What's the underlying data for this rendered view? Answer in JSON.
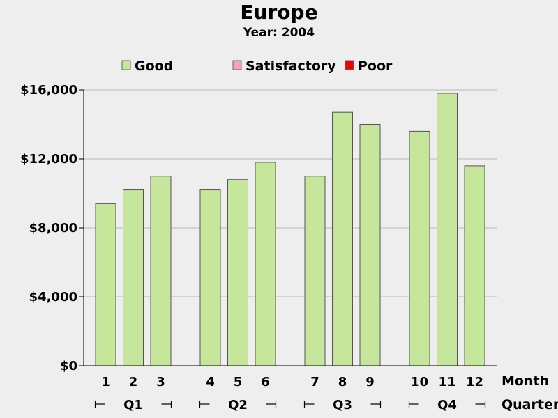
{
  "chart_data": {
    "type": "bar",
    "title": "Europe",
    "subtitle": "Year: 2004",
    "xlabel": "Month",
    "group_label": "Quarter",
    "ylim": [
      0,
      16000
    ],
    "yticks": [
      0,
      4000,
      8000,
      12000,
      16000
    ],
    "ytick_labels": [
      "$0",
      "$4,000",
      "$8,000",
      "$12,000",
      "$16,000"
    ],
    "grid": true,
    "legend_position": "top",
    "legend": [
      {
        "name": "Good",
        "color": "#c5e69b"
      },
      {
        "name": "Satisfactory",
        "color": "#f4a3b8"
      },
      {
        "name": "Poor",
        "color": "#ee0000"
      }
    ],
    "groups": [
      {
        "label": "Q1",
        "months": [
          "1",
          "2",
          "3"
        ]
      },
      {
        "label": "Q2",
        "months": [
          "4",
          "5",
          "6"
        ]
      },
      {
        "label": "Q3",
        "months": [
          "7",
          "8",
          "9"
        ]
      },
      {
        "label": "Q4",
        "months": [
          "10",
          "11",
          "12"
        ]
      }
    ],
    "categories": [
      "1",
      "2",
      "3",
      "4",
      "5",
      "6",
      "7",
      "8",
      "9",
      "10",
      "11",
      "12"
    ],
    "series": [
      {
        "name": "Good",
        "color": "#c5e69b",
        "values": [
          9400,
          10200,
          11000,
          10200,
          10800,
          11800,
          11000,
          14700,
          14000,
          13600,
          15800,
          11600
        ]
      }
    ]
  }
}
